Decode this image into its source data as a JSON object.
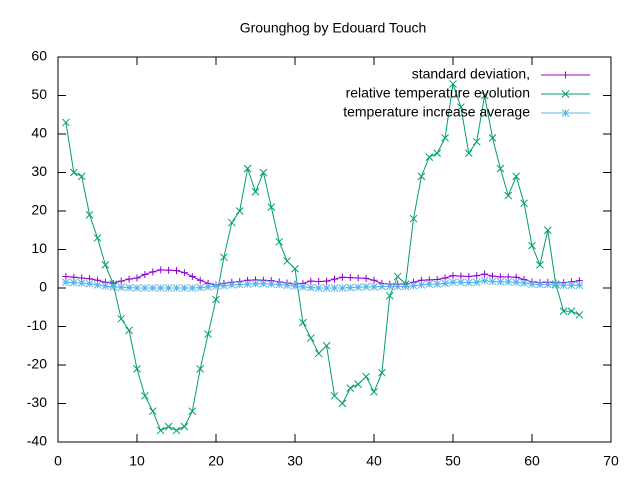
{
  "chart_data": {
    "type": "line",
    "title": "Grounghog by Edouard Touch",
    "x": [
      1,
      2,
      3,
      4,
      5,
      6,
      7,
      8,
      9,
      10,
      11,
      12,
      13,
      14,
      15,
      16,
      17,
      18,
      19,
      20,
      21,
      22,
      23,
      24,
      25,
      26,
      27,
      28,
      29,
      30,
      31,
      32,
      33,
      34,
      35,
      36,
      37,
      38,
      39,
      40,
      41,
      42,
      43,
      44,
      45,
      46,
      47,
      48,
      49,
      50,
      51,
      52,
      53,
      54,
      55,
      56,
      57,
      58,
      59,
      60,
      61,
      62,
      63,
      64,
      65,
      66
    ],
    "series": [
      {
        "name": "standard deviation,",
        "color": "#9400d3",
        "marker": "+",
        "values": [
          3,
          2.8,
          2.6,
          2.4,
          2,
          1.5,
          1.2,
          1.8,
          2.3,
          2.6,
          3.5,
          4.2,
          4.7,
          4.6,
          4.5,
          4,
          3,
          2,
          1.2,
          0.8,
          1.2,
          1.5,
          1.7,
          2,
          2.1,
          2,
          1.9,
          1.6,
          1.3,
          1,
          1.2,
          1.8,
          1.7,
          1.8,
          2.3,
          2.8,
          2.7,
          2.6,
          2.5,
          2,
          1.2,
          1,
          1,
          1,
          1.5,
          2,
          2.1,
          2.2,
          2.6,
          3.2,
          3.1,
          3,
          3.2,
          3.6,
          3.1,
          2.9,
          2.9,
          2.8,
          2.2,
          1.6,
          1.4,
          1.5,
          1.3,
          1.4,
          1.6,
          1.9
        ]
      },
      {
        "name": "relative temperature evolution",
        "color": "#009e73",
        "marker": "x",
        "values": [
          43,
          30,
          29,
          19,
          13,
          6,
          1,
          -8,
          -11,
          -21,
          -28,
          -32,
          -37,
          -36,
          -37,
          -36,
          -32,
          -21,
          -12,
          -3,
          8,
          17,
          20,
          31,
          25,
          30,
          21,
          12,
          7,
          5,
          -9,
          -13,
          -17,
          -15,
          -28,
          -30,
          -26,
          -25,
          -23,
          -27,
          -22,
          -2,
          3,
          1,
          18,
          29,
          34,
          35,
          39,
          53,
          47,
          35,
          38,
          50,
          39,
          31,
          24,
          29,
          22,
          11,
          6,
          15,
          1,
          -6,
          -6,
          -7
        ]
      },
      {
        "name": "temperature increase average",
        "color": "#56b4e9",
        "marker": "*",
        "values": [
          1.5,
          1.4,
          1.3,
          1.1,
          0.8,
          0.5,
          0.3,
          0.2,
          0.1,
          0,
          0,
          0,
          0,
          0,
          0,
          0,
          0,
          0.1,
          0.3,
          0.5,
          0.6,
          0.8,
          0.9,
          1,
          1.1,
          1.1,
          1,
          0.9,
          0.7,
          0.5,
          0.3,
          0.1,
          0,
          0,
          0,
          0,
          0.1,
          0.2,
          0.3,
          0.3,
          0.4,
          0.4,
          0.4,
          0.4,
          0.6,
          0.8,
          1,
          1,
          1.2,
          1.5,
          1.5,
          1.4,
          1.5,
          1.9,
          1.7,
          1.6,
          1.6,
          1.5,
          1.3,
          1,
          0.9,
          0.9,
          0.8,
          0.7,
          0.7,
          0.7
        ]
      }
    ],
    "xlim": [
      0,
      70
    ],
    "xticks": [
      0,
      10,
      20,
      30,
      40,
      50,
      60,
      70
    ],
    "ylim": [
      -40,
      60
    ],
    "yticks": [
      -40,
      -30,
      -20,
      -10,
      0,
      10,
      20,
      30,
      40,
      50,
      60
    ],
    "legend": "top-right"
  }
}
